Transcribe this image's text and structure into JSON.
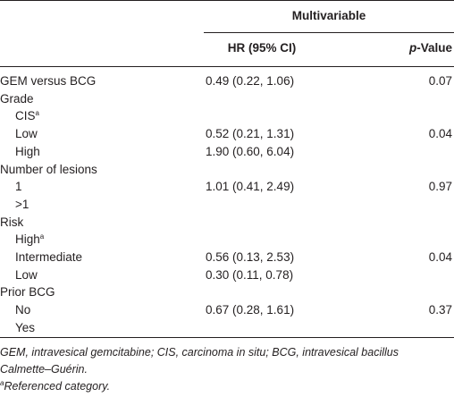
{
  "header": {
    "group": "Multivariable",
    "columns": [
      "HR (95% CI)",
      {
        "italic": "p",
        "rest": "-Value"
      }
    ]
  },
  "table": {
    "groups": [
      {
        "label": "GEM versus BCG",
        "hr": "0.49 (0.22, 1.06)",
        "p": "0.07"
      },
      {
        "label": "Grade",
        "items": [
          {
            "label": "CIS",
            "sup": "a"
          },
          {
            "label": "Low",
            "hr": "0.52 (0.21, 1.31)",
            "p": "0.04"
          },
          {
            "label": "High",
            "hr": "1.90 (0.60, 6.04)"
          }
        ]
      },
      {
        "label": "Number of lesions",
        "items": [
          {
            "label": "1",
            "hr": "1.01 (0.41, 2.49)",
            "p": "0.97"
          },
          {
            "label": ">1"
          }
        ]
      },
      {
        "label": "Risk",
        "items": [
          {
            "label": "High",
            "sup": "a"
          },
          {
            "label": "Intermediate",
            "hr": "0.56 (0.13, 2.53)",
            "p": "0.04"
          },
          {
            "label": "Low",
            "hr": "0.30 (0.11, 0.78)"
          }
        ]
      },
      {
        "label": "Prior BCG",
        "items": [
          {
            "label": "No",
            "hr": "0.67 (0.28, 1.61)",
            "p": "0.37"
          },
          {
            "label": "Yes"
          }
        ]
      }
    ]
  },
  "footnotes": {
    "abbreviations": "GEM, intravesical gemcitabine; CIS, carcinoma in situ; BCG, intravesical bacillus Calmette–Guérin.",
    "note": {
      "sup": "a",
      "text": "Referenced category."
    }
  }
}
